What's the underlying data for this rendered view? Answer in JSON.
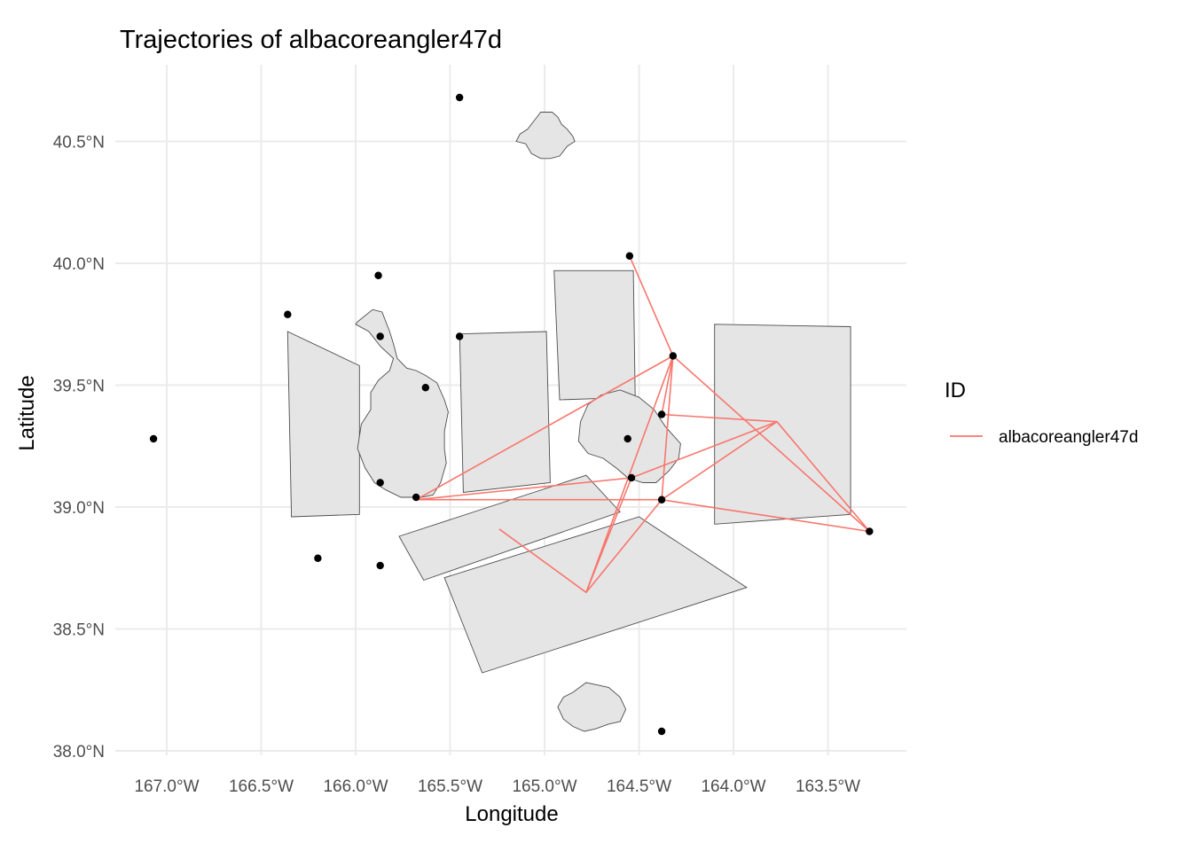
{
  "chart_data": {
    "type": "scatter",
    "title": "Trajectories of albacoreangler47d",
    "xlabel": "Longitude",
    "ylabel": "Latitude",
    "xlim": [
      -167.25,
      -162.95
    ],
    "ylim": [
      37.9,
      40.83
    ],
    "x_ticks": [
      -167.0,
      -166.5,
      -166.0,
      -165.5,
      -165.0,
      -164.5,
      -164.0,
      -163.5
    ],
    "x_tick_labels": [
      "167.0°W",
      "166.5°W",
      "166.0°W",
      "165.5°W",
      "165.0°W",
      "164.5°W",
      "164.0°W",
      "163.5°W"
    ],
    "y_ticks": [
      38.0,
      38.5,
      39.0,
      39.5,
      40.0,
      40.5
    ],
    "y_tick_labels": [
      "38.0°N",
      "38.5°N",
      "39.0°N",
      "39.5°N",
      "40.0°N",
      "40.5°N"
    ],
    "grid": true,
    "legend": {
      "title": "ID",
      "position": "right",
      "entries": [
        {
          "label": "albacoreangler47d",
          "color": "#F8766D"
        }
      ]
    },
    "series": [
      {
        "name": "albacoreangler47d",
        "color": "#F8766D",
        "trajectory": [
          [
            -164.55,
            40.03
          ],
          [
            -164.32,
            39.62
          ],
          [
            -164.38,
            39.38
          ],
          [
            -163.77,
            39.35
          ],
          [
            -163.28,
            38.9
          ],
          [
            -164.38,
            39.03
          ],
          [
            -165.68,
            39.03
          ],
          [
            -164.32,
            39.62
          ],
          [
            -164.38,
            39.03
          ],
          [
            -163.77,
            39.35
          ],
          [
            -164.54,
            39.12
          ],
          [
            -165.68,
            39.03
          ],
          [
            -164.54,
            39.12
          ],
          [
            -164.78,
            38.65
          ],
          [
            -164.32,
            39.62
          ],
          [
            -163.28,
            38.9
          ],
          [
            -164.38,
            39.03
          ],
          [
            -164.78,
            38.65
          ],
          [
            -165.24,
            38.91
          ]
        ]
      }
    ],
    "points": [
      [
        -165.45,
        40.68
      ],
      [
        -164.55,
        40.03
      ],
      [
        -165.88,
        39.95
      ],
      [
        -166.36,
        39.79
      ],
      [
        -165.87,
        39.7
      ],
      [
        -165.45,
        39.7
      ],
      [
        -164.32,
        39.62
      ],
      [
        -165.63,
        39.49
      ],
      [
        -164.38,
        39.38
      ],
      [
        -167.07,
        39.28
      ],
      [
        -164.56,
        39.28
      ],
      [
        -164.54,
        39.12
      ],
      [
        -165.87,
        39.1
      ],
      [
        -165.68,
        39.04
      ],
      [
        -164.38,
        39.03
      ],
      [
        -163.28,
        38.9
      ],
      [
        -166.2,
        38.79
      ],
      [
        -165.87,
        38.76
      ],
      [
        -164.38,
        38.08
      ]
    ],
    "land_polygons": [
      [
        [
          -166.36,
          39.72
        ],
        [
          -165.98,
          39.58
        ],
        [
          -165.98,
          38.97
        ],
        [
          -166.34,
          38.96
        ]
      ],
      [
        [
          -165.45,
          39.71
        ],
        [
          -164.99,
          39.72
        ],
        [
          -164.97,
          39.1
        ],
        [
          -165.43,
          39.06
        ]
      ],
      [
        [
          -164.95,
          39.97
        ],
        [
          -164.53,
          39.97
        ],
        [
          -164.52,
          39.45
        ],
        [
          -164.92,
          39.44
        ]
      ],
      [
        [
          -164.1,
          39.75
        ],
        [
          -163.38,
          39.74
        ],
        [
          -163.38,
          38.97
        ],
        [
          -164.1,
          38.93
        ]
      ],
      [
        [
          -165.77,
          38.88
        ],
        [
          -164.78,
          39.13
        ],
        [
          -164.6,
          38.98
        ],
        [
          -165.64,
          38.7
        ]
      ],
      [
        [
          -165.53,
          38.71
        ],
        [
          -164.5,
          38.96
        ],
        [
          -163.93,
          38.67
        ],
        [
          -165.33,
          38.32
        ]
      ]
    ],
    "island_shapes": [
      [
        [
          -165.04,
          40.6
        ],
        [
          -165.02,
          40.62
        ],
        [
          -164.96,
          40.62
        ],
        [
          -164.93,
          40.6
        ],
        [
          -164.91,
          40.57
        ],
        [
          -164.88,
          40.55
        ],
        [
          -164.85,
          40.52
        ],
        [
          -164.84,
          40.5
        ],
        [
          -164.88,
          40.48
        ],
        [
          -164.92,
          40.44
        ],
        [
          -164.97,
          40.43
        ],
        [
          -165.02,
          40.43
        ],
        [
          -165.07,
          40.45
        ],
        [
          -165.1,
          40.49
        ],
        [
          -165.15,
          40.5
        ],
        [
          -165.13,
          40.53
        ],
        [
          -165.09,
          40.55
        ],
        [
          -165.06,
          40.58
        ]
      ],
      [
        [
          -165.99,
          39.76
        ],
        [
          -165.91,
          39.81
        ],
        [
          -165.86,
          39.8
        ],
        [
          -165.82,
          39.72
        ],
        [
          -165.8,
          39.67
        ],
        [
          -165.78,
          39.61
        ],
        [
          -165.73,
          39.57
        ],
        [
          -165.68,
          39.56
        ],
        [
          -165.63,
          39.54
        ],
        [
          -165.57,
          39.51
        ],
        [
          -165.53,
          39.44
        ],
        [
          -165.51,
          39.39
        ],
        [
          -165.53,
          39.31
        ],
        [
          -165.53,
          39.24
        ],
        [
          -165.52,
          39.18
        ],
        [
          -165.55,
          39.1
        ],
        [
          -165.59,
          39.05
        ],
        [
          -165.65,
          39.04
        ],
        [
          -165.71,
          39.04
        ],
        [
          -165.76,
          39.04
        ],
        [
          -165.84,
          39.07
        ],
        [
          -165.9,
          39.1
        ],
        [
          -165.95,
          39.16
        ],
        [
          -165.99,
          39.24
        ],
        [
          -165.97,
          39.34
        ],
        [
          -165.92,
          39.4
        ],
        [
          -165.92,
          39.47
        ],
        [
          -165.88,
          39.52
        ],
        [
          -165.82,
          39.56
        ],
        [
          -165.8,
          39.61
        ],
        [
          -165.87,
          39.66
        ],
        [
          -165.93,
          39.72
        ],
        [
          -166.0,
          39.75
        ]
      ],
      [
        [
          -164.7,
          39.46
        ],
        [
          -164.6,
          39.48
        ],
        [
          -164.5,
          39.45
        ],
        [
          -164.42,
          39.4
        ],
        [
          -164.36,
          39.33
        ],
        [
          -164.28,
          39.26
        ],
        [
          -164.29,
          39.2
        ],
        [
          -164.34,
          39.15
        ],
        [
          -164.41,
          39.1
        ],
        [
          -164.48,
          39.1
        ],
        [
          -164.56,
          39.12
        ],
        [
          -164.62,
          39.16
        ],
        [
          -164.69,
          39.2
        ],
        [
          -164.77,
          39.22
        ],
        [
          -164.82,
          39.27
        ],
        [
          -164.81,
          39.35
        ],
        [
          -164.77,
          39.42
        ]
      ],
      [
        [
          -164.85,
          38.24
        ],
        [
          -164.78,
          38.28
        ],
        [
          -164.72,
          38.27
        ],
        [
          -164.66,
          38.26
        ],
        [
          -164.6,
          38.22
        ],
        [
          -164.57,
          38.17
        ],
        [
          -164.6,
          38.12
        ],
        [
          -164.66,
          38.11
        ],
        [
          -164.73,
          38.09
        ],
        [
          -164.79,
          38.08
        ],
        [
          -164.85,
          38.1
        ],
        [
          -164.9,
          38.13
        ],
        [
          -164.93,
          38.18
        ],
        [
          -164.9,
          38.22
        ]
      ]
    ]
  }
}
